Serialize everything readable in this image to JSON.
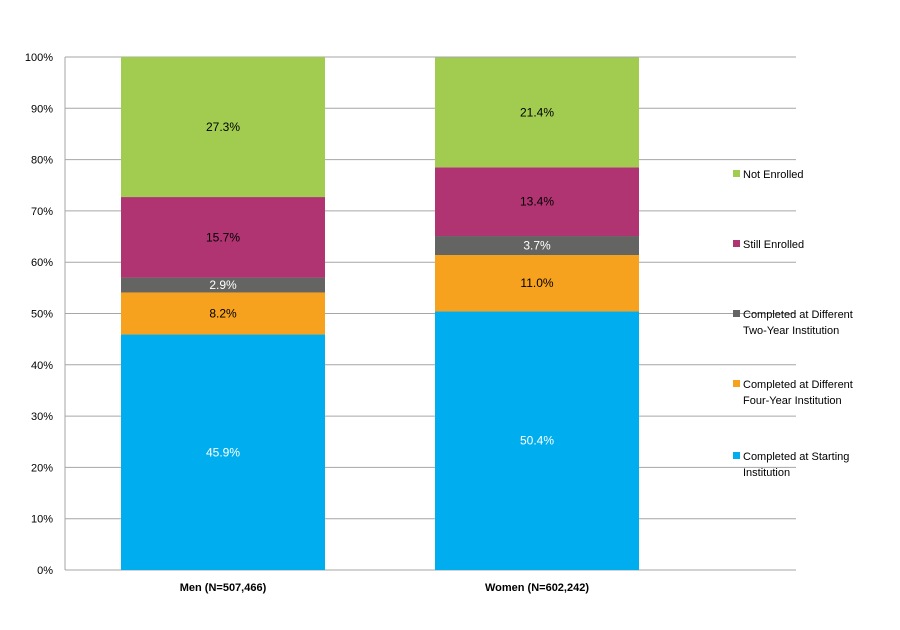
{
  "chart_data": {
    "type": "bar",
    "stacked": true,
    "categories": [
      "Men (N=507,466)",
      "Women (N=602,242)"
    ],
    "series": [
      {
        "name": "Completed at Starting Institution",
        "legend_lines": [
          "Completed at Starting",
          "Institution"
        ],
        "color": "#00AEEF",
        "label_color": "#FFFFFF",
        "values": [
          45.9,
          50.4
        ],
        "labels": [
          "45.9%",
          "50.4%"
        ]
      },
      {
        "name": "Completed at Different Four-Year Institution",
        "legend_lines": [
          "Completed at Different",
          "Four-Year Institution"
        ],
        "color": "#F7A21E",
        "label_color": "#000000",
        "values": [
          8.2,
          11.0
        ],
        "labels": [
          "8.2%",
          "11.0%"
        ]
      },
      {
        "name": "Completed at Different Two-Year Institution",
        "legend_lines": [
          "Completed at Different",
          "Two-Year Institution"
        ],
        "color": "#646563",
        "label_color": "#FFFFFF",
        "values": [
          2.9,
          3.7
        ],
        "labels": [
          "2.9%",
          "3.7%"
        ]
      },
      {
        "name": "Still Enrolled",
        "legend_lines": [
          "Still Enrolled"
        ],
        "color": "#B03372",
        "label_color": "#000000",
        "values": [
          15.7,
          13.4
        ],
        "labels": [
          "15.7%",
          "13.4%"
        ]
      },
      {
        "name": "Not Enrolled",
        "legend_lines": [
          "Not Enrolled"
        ],
        "color": "#A1CC50",
        "label_color": "#000000",
        "values": [
          27.3,
          21.4
        ],
        "labels": [
          "27.3%",
          "21.4%"
        ]
      }
    ],
    "ylim": [
      0,
      100
    ],
    "yticks": [
      "0%",
      "10%",
      "20%",
      "30%",
      "40%",
      "50%",
      "60%",
      "70%",
      "80%",
      "90%",
      "100%"
    ],
    "grid": true,
    "legend_placement": "right",
    "gridline_color": "#A6A6A6"
  }
}
